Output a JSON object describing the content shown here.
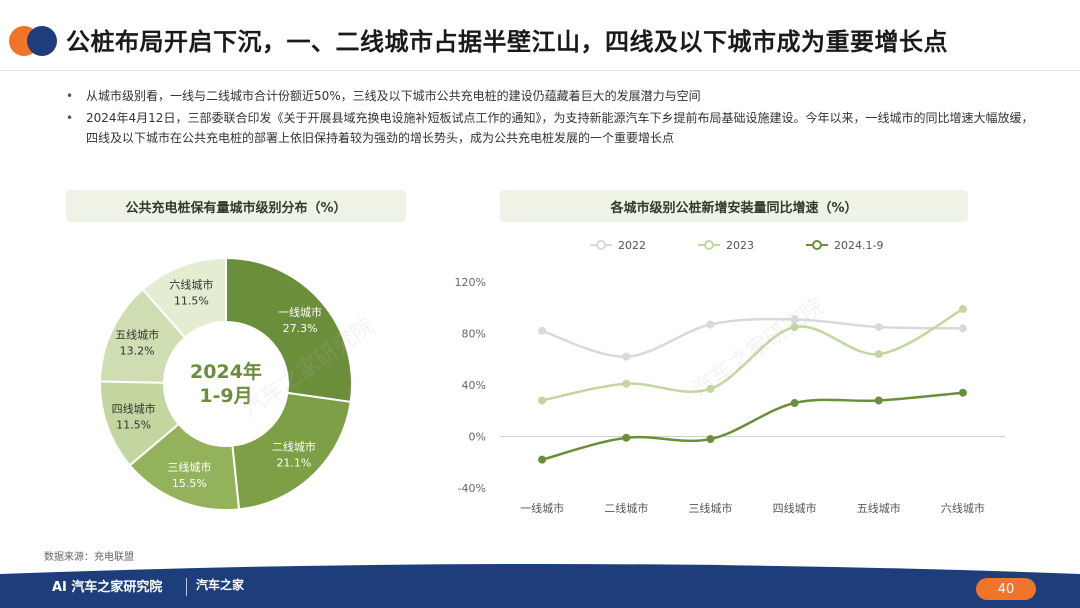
{
  "header": {
    "title": "公桩布局开启下沉，一、二线城市占据半壁江山，四线及以下城市成为重要增长点"
  },
  "bullets": [
    "从城市级别看，一线与二线城市合计份额近50%，三线及以下城市公共充电桩的建设仍蕴藏着巨大的发展潜力与空间",
    "2024年4月12日，三部委联合印发《关于开展县域充换电设施补短板试点工作的通知》，为支持新能源汽车下乡提前布局基础设施建设。今年以来，一线城市的同比增速大幅放缓，四线及以下城市在公共充电桩的部署上依旧保持着较为强劲的增长势头，成为公共充电桩发展的一个重要增长点"
  ],
  "source": "数据来源：充电联盟",
  "footer": {
    "brand1": "AI 汽车之家研究院",
    "brand2": "汽车之家",
    "page_number": "40"
  },
  "watermarks": [
    "汽车之家研究院",
    "汽车之家研究院"
  ],
  "colors": {
    "dark_green": "#6b8e3a",
    "mid_green": "#8eaf4f",
    "light_green": "#b6cc8a",
    "pale_green": "#d4e2b9",
    "paler_green": "#e4ecd2",
    "gray_line": "#d9d9d9",
    "footer_blue": "#1e3d7b",
    "accent_orange": "#f0742a"
  },
  "chart_data": [
    {
      "type": "pie",
      "title": "公共充电桩保有量城市级别分布（%）",
      "center_label": [
        "2024年",
        "1-9月"
      ],
      "categories": [
        "一线城市",
        "二线城市",
        "三线城市",
        "四线城市",
        "五线城市",
        "六线城市"
      ],
      "values": [
        27.3,
        21.1,
        15.5,
        11.5,
        13.2,
        11.5
      ],
      "value_labels": [
        "27.3%",
        "21.1%",
        "15.5%",
        "11.5%",
        "13.2%",
        "11.5%"
      ],
      "colors": [
        "#6b8e3a",
        "#7d9f45",
        "#93b25b",
        "#c3d6a0",
        "#cfddb3",
        "#e4ecd2"
      ]
    },
    {
      "type": "line",
      "title": "各城市级别公桩新增安装量同比增速（%）",
      "categories": [
        "一线城市",
        "二线城市",
        "三线城市",
        "四线城市",
        "五线城市",
        "六线城市"
      ],
      "ylim": [
        -40,
        120
      ],
      "yticks": [
        "-40%",
        "0%",
        "40%",
        "80%",
        "120%"
      ],
      "ytick_values": [
        -40,
        0,
        40,
        80,
        120
      ],
      "legend_position": "top",
      "grid": true,
      "series": [
        {
          "name": "2022",
          "values": [
            82,
            62,
            87,
            91,
            85,
            84
          ],
          "color": "#d9d9d9"
        },
        {
          "name": "2023",
          "values": [
            28,
            41,
            37,
            85,
            64,
            99
          ],
          "color": "#c3d6a0"
        },
        {
          "name": "2024.1-9",
          "values": [
            -18,
            -1,
            -2,
            26,
            28,
            34
          ],
          "color": "#6b8e3a"
        }
      ]
    }
  ]
}
